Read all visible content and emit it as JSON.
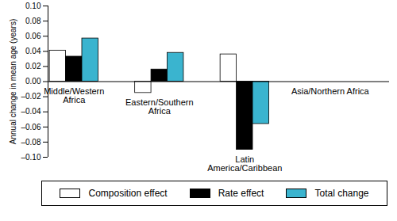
{
  "chart_data": {
    "type": "bar",
    "ylabel": "Annual change in mean age (years)",
    "categories": [
      "Middle/Western\nAfrica",
      "Eastern/Southern\nAfrica",
      "Latin\nAmerica/Caribbean",
      "Asia/Northern Africa"
    ],
    "series": [
      {
        "name": "Composition effect",
        "color": "#ffffff",
        "values": [
          0.041,
          -0.015,
          0.036,
          null
        ]
      },
      {
        "name": "Rate effect",
        "color": "#000000",
        "values": [
          0.033,
          0.016,
          -0.09,
          null
        ]
      },
      {
        "name": "Total change",
        "color": "#3ab4cf",
        "values": [
          0.057,
          0.038,
          -0.056,
          null
        ]
      }
    ],
    "ylim": [
      -0.1,
      0.1
    ],
    "yticks": [
      {
        "value": -0.1,
        "label": "–0.10"
      },
      {
        "value": -0.08,
        "label": "–0.08"
      },
      {
        "value": -0.06,
        "label": "–0.06"
      },
      {
        "value": -0.04,
        "label": "–0.04"
      },
      {
        "value": -0.02,
        "label": "–0.02"
      },
      {
        "value": 0,
        "label": "0.00"
      },
      {
        "value": 0.02,
        "label": "0.02"
      },
      {
        "value": 0.04,
        "label": "0.04"
      },
      {
        "value": 0.06,
        "label": "0.06"
      },
      {
        "value": 0.08,
        "label": "0.08"
      },
      {
        "value": 0.1,
        "label": "0.10"
      }
    ],
    "legend": "bottom"
  }
}
